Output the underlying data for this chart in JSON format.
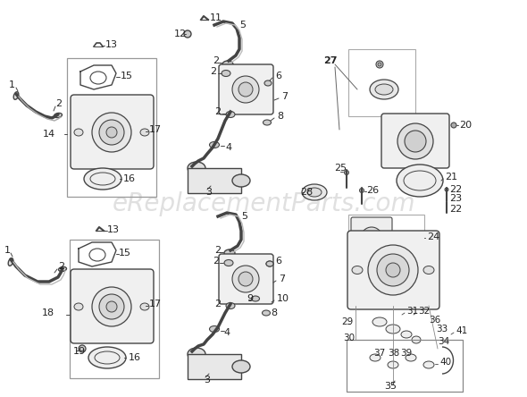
{
  "bg_color": "#ffffff",
  "watermark": "eReplacementParts.com",
  "watermark_color": "#e0e0e0",
  "line_color": "#444444",
  "gray": "#888888",
  "light_gray": "#bbbbbb",
  "dark_gray": "#555555"
}
